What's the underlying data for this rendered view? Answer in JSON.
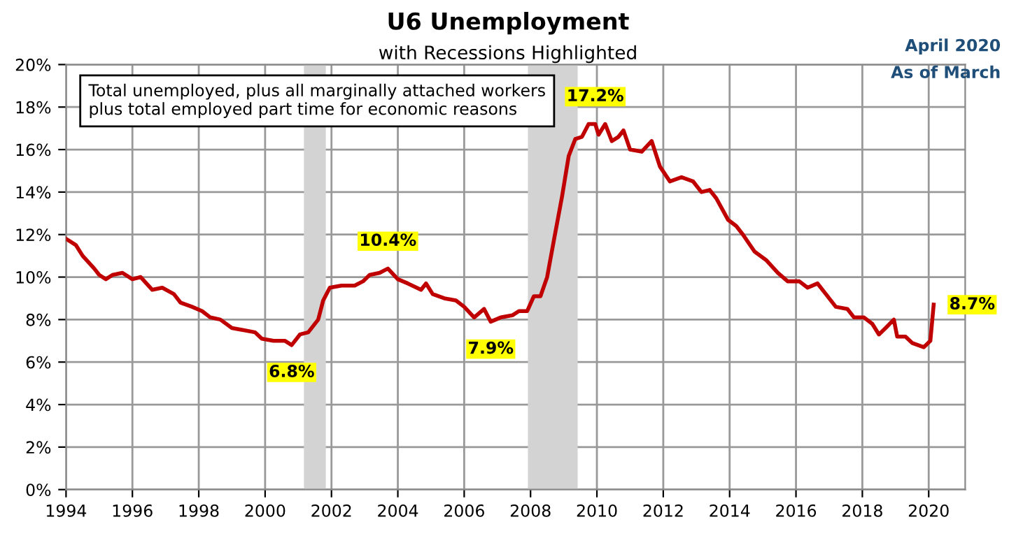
{
  "chart_data": {
    "type": "line",
    "title": "U6 Unemployment",
    "subtitle": "with Recessions Highlighted",
    "xlim": [
      1994,
      2021.1
    ],
    "xticks": [
      1994,
      1996,
      1998,
      2000,
      2002,
      2004,
      2006,
      2008,
      2010,
      2012,
      2014,
      2016,
      2018,
      2020
    ],
    "ylim": [
      0,
      20
    ],
    "yticks": [
      {
        "value": 0,
        "label": "0%"
      },
      {
        "value": 2,
        "label": "2%"
      },
      {
        "value": 4,
        "label": "4%"
      },
      {
        "value": 6,
        "label": "6%"
      },
      {
        "value": 8,
        "label": "8%"
      },
      {
        "value": 10,
        "label": "10%"
      },
      {
        "value": 12,
        "label": "12%"
      },
      {
        "value": 14,
        "label": "14%"
      },
      {
        "value": 16,
        "label": "16%"
      },
      {
        "value": 18,
        "label": "18%"
      },
      {
        "value": 20,
        "label": "20%"
      }
    ],
    "grid": true,
    "legend": false,
    "marker": "none",
    "line_style": "solid",
    "series": [
      {
        "color": "#c00000",
        "x": [
          1994.0,
          1994.3,
          1994.5,
          1994.85,
          1995.0,
          1995.2,
          1995.4,
          1995.7,
          1996.0,
          1996.25,
          1996.6,
          1996.9,
          1997.25,
          1997.45,
          1997.8,
          1998.1,
          1998.35,
          1998.65,
          1999.0,
          1999.35,
          1999.7,
          1999.9,
          2000.25,
          2000.6,
          2000.8,
          2001.05,
          2001.3,
          2001.6,
          2001.75,
          2001.95,
          2002.3,
          2002.7,
          2002.95,
          2003.15,
          2003.45,
          2003.7,
          2004.0,
          2004.3,
          2004.7,
          2004.85,
          2005.05,
          2005.4,
          2005.75,
          2006.0,
          2006.3,
          2006.6,
          2006.8,
          2007.1,
          2007.45,
          2007.65,
          2007.9,
          2008.1,
          2008.3,
          2008.5,
          2008.7,
          2008.95,
          2009.15,
          2009.35,
          2009.55,
          2009.75,
          2009.95,
          2010.05,
          2010.25,
          2010.45,
          2010.65,
          2010.8,
          2011.0,
          2011.35,
          2011.65,
          2011.9,
          2012.2,
          2012.55,
          2012.9,
          2013.15,
          2013.4,
          2013.6,
          2013.95,
          2014.2,
          2014.4,
          2014.75,
          2015.1,
          2015.45,
          2015.75,
          2016.1,
          2016.35,
          2016.65,
          2016.9,
          2017.2,
          2017.55,
          2017.75,
          2018.05,
          2018.3,
          2018.5,
          2018.7,
          2018.95,
          2019.05,
          2019.3,
          2019.5,
          2019.85,
          2020.05,
          2020.15
        ],
        "values": [
          11.8,
          11.5,
          11.0,
          10.4,
          10.1,
          9.9,
          10.1,
          10.2,
          9.9,
          10.0,
          9.4,
          9.5,
          9.2,
          8.8,
          8.6,
          8.4,
          8.1,
          8.0,
          7.6,
          7.5,
          7.4,
          7.1,
          7.0,
          7.0,
          6.8,
          7.3,
          7.4,
          8.0,
          8.9,
          9.5,
          9.6,
          9.6,
          9.8,
          10.1,
          10.2,
          10.4,
          9.9,
          9.7,
          9.4,
          9.7,
          9.2,
          9.0,
          8.9,
          8.6,
          8.1,
          8.5,
          7.9,
          8.1,
          8.2,
          8.4,
          8.4,
          9.1,
          9.1,
          10.0,
          11.7,
          13.8,
          15.7,
          16.5,
          16.6,
          17.2,
          17.2,
          16.7,
          17.2,
          16.4,
          16.6,
          16.9,
          16.0,
          15.9,
          16.4,
          15.2,
          14.5,
          14.7,
          14.5,
          14.0,
          14.1,
          13.7,
          12.7,
          12.4,
          12.0,
          11.2,
          10.8,
          10.2,
          9.8,
          9.8,
          9.5,
          9.7,
          9.2,
          8.6,
          8.5,
          8.1,
          8.1,
          7.8,
          7.3,
          7.6,
          8.0,
          7.2,
          7.2,
          6.9,
          6.7,
          7.0,
          8.7
        ]
      }
    ],
    "bands": [
      {
        "axis": "x",
        "from": 2001.17,
        "to": 2001.83,
        "color": "#d3d3d3"
      },
      {
        "axis": "x",
        "from": 2007.92,
        "to": 2009.42,
        "color": "#d3d3d3"
      }
    ],
    "annotations": [
      {
        "text": "6.8%",
        "x": 2000.8,
        "y": 6.8
      },
      {
        "text": "10.4%",
        "x": 2003.7,
        "y": 10.4
      },
      {
        "text": "7.9%",
        "x": 2006.8,
        "y": 7.9
      },
      {
        "text": "17.2%",
        "x": 2009.95,
        "y": 17.2
      },
      {
        "text": "8.7%",
        "x": 2020.15,
        "y": 8.7
      },
      "Total unemployed, plus all marginally attached workers plus total employed part time for economic reasons",
      "April 2020",
      "As of March"
    ]
  }
}
